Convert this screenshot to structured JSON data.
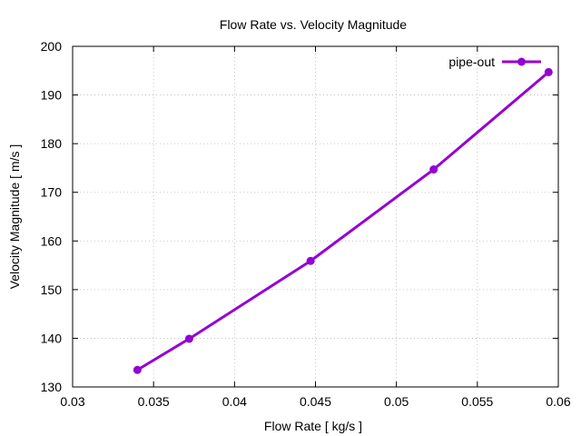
{
  "chart_data": {
    "type": "line",
    "title": "Flow Rate vs. Velocity Magnitude",
    "xlabel": "Flow Rate [ kg/s ]",
    "ylabel": "Velocity Magnitude [ m/s ]",
    "xlim": [
      0.03,
      0.06
    ],
    "ylim": [
      130,
      200
    ],
    "x_ticks": [
      0.03,
      0.035,
      0.04,
      0.045,
      0.05,
      0.055,
      0.06
    ],
    "x_tick_labels": [
      "0.03",
      "0.035",
      "0.04",
      "0.045",
      "0.05",
      "0.055",
      "0.06"
    ],
    "y_ticks": [
      130,
      140,
      150,
      160,
      170,
      180,
      190,
      200
    ],
    "y_tick_labels": [
      "130",
      "140",
      "150",
      "160",
      "170",
      "180",
      "190",
      "200"
    ],
    "grid": true,
    "legend_position": "top-right",
    "series": [
      {
        "name": "pipe-out",
        "color": "#9400d3",
        "marker": "circle",
        "x": [
          0.034,
          0.0372,
          0.0447,
          0.0523,
          0.0594
        ],
        "y": [
          133.5,
          139.9,
          155.9,
          174.7,
          194.7
        ]
      }
    ]
  }
}
